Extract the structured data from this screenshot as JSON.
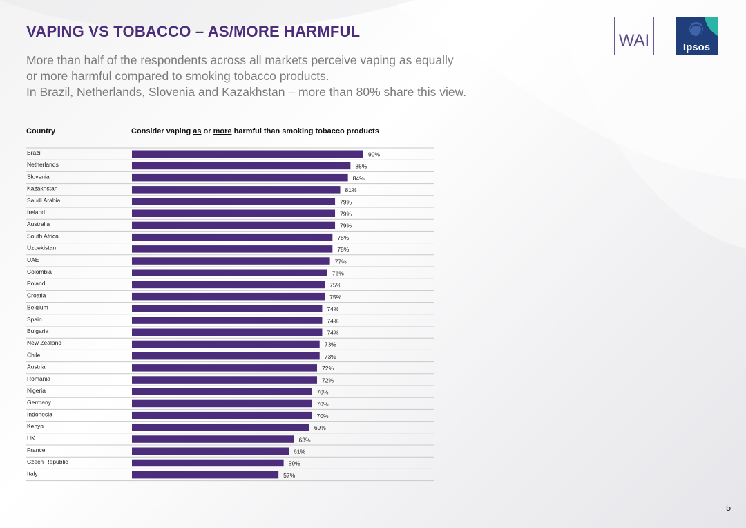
{
  "slide": {
    "title": "VAPING VS TOBACCO – AS/MORE HARMFUL",
    "subtitle_lines": [
      "More than half of the respondents across all markets perceive vaping as equally",
      "or more harmful compared to smoking tobacco products.",
      "In Brazil, Netherlands, Slovenia and Kazakhstan – more than 80% share this view."
    ],
    "page_number": "5",
    "logos": {
      "wai": "WAI",
      "ipsos": "Ipsos"
    }
  },
  "table_header": {
    "country": "Country",
    "question_prefix": "Consider vaping ",
    "question_as": "as",
    "question_or": " or ",
    "question_more": "more",
    "question_suffix": " harmful than smoking tobacco products"
  },
  "chart_data": {
    "type": "bar",
    "orientation": "horizontal",
    "categories": [
      "Brazil",
      "Netherlands",
      "Slovenia",
      "Kazakhstan",
      "Saudi Arabia",
      "Ireland",
      "Australia",
      "South Africa",
      "Uzbekistan",
      "UAE",
      "Colombia",
      "Poland",
      "Croatia",
      "Belgium",
      "Spain",
      "Bulgaria",
      "New Zealand",
      "Chile",
      "Austria",
      "Romania",
      "Nigeria",
      "Germany",
      "Indonesia",
      "Kenya",
      "UK",
      "France",
      "Czech Republic",
      "Italy"
    ],
    "values": [
      90,
      85,
      84,
      81,
      79,
      79,
      79,
      78,
      78,
      77,
      76,
      75,
      75,
      74,
      74,
      74,
      73,
      73,
      72,
      72,
      70,
      70,
      70,
      69,
      63,
      61,
      59,
      57
    ],
    "value_labels": [
      "90%",
      "85%",
      "84%",
      "81%",
      "79%",
      "79%",
      "79%",
      "78%",
      "78%",
      "77%",
      "76%",
      "75%",
      "75%",
      "74%",
      "74%",
      "74%",
      "73%",
      "73%",
      "72%",
      "72%",
      "70%",
      "70%",
      "70%",
      "69%",
      "63%",
      "61%",
      "59%",
      "57%"
    ],
    "unit": "%",
    "xlim": [
      0,
      100
    ],
    "bar_color": "#4b2d7c",
    "row_separator_color": "#c9c9c9"
  }
}
